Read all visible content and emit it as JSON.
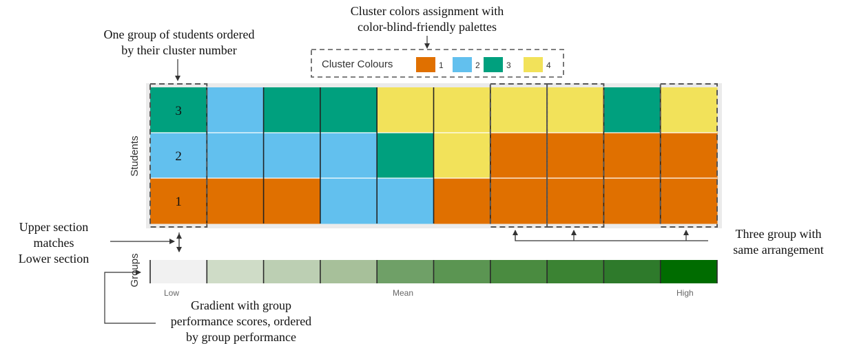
{
  "colors": {
    "cluster_1": "#E07000",
    "cluster_2": "#62C0EE",
    "cluster_3": "#00A07E",
    "cluster_4": "#F2E25A",
    "panel_bg": "#EBEBEB",
    "grid": "#FFFFFF",
    "column_divider": "#222222",
    "dashed_box": "#555555",
    "gradient": [
      "#F1F1F1",
      "#CFDCC7",
      "#BCCFB3",
      "#A7C09A",
      "#6FA067",
      "#5B9552",
      "#4A8B40",
      "#3B8333",
      "#2E7A2B",
      "#006C00"
    ]
  },
  "annotations": {
    "top_line1": "Cluster colors assignment with",
    "top_line2": "color-blind-friendly palettes",
    "left_top_line1": "One group of students ordered",
    "left_top_line2": "by their cluster number",
    "left_mid_line1": "Upper section",
    "left_mid_line2": "matches",
    "left_mid_line3": "Lower section",
    "right_line1": "Three group with",
    "right_line2": "same arrangement",
    "bottom_line1": "Gradient with group",
    "bottom_line2": "performance scores, ordered",
    "bottom_line3": "by group performance"
  },
  "legend": {
    "title": "Cluster Colours",
    "items": [
      {
        "label": "1",
        "color_key": "cluster_1"
      },
      {
        "label": "2",
        "color_key": "cluster_2"
      },
      {
        "label": "3",
        "color_key": "cluster_3"
      },
      {
        "label": "4",
        "color_key": "cluster_4"
      }
    ]
  },
  "heatmap": {
    "y_axis_label": "Students",
    "row_labels": [
      "3",
      "2",
      "1"
    ],
    "columns": [
      [
        3,
        2,
        1
      ],
      [
        2,
        2,
        1
      ],
      [
        3,
        2,
        1
      ],
      [
        3,
        2,
        2
      ],
      [
        4,
        3,
        2
      ],
      [
        4,
        4,
        1
      ],
      [
        4,
        1,
        1
      ],
      [
        4,
        1,
        1
      ],
      [
        3,
        1,
        1
      ],
      [
        4,
        1,
        1
      ]
    ]
  },
  "groups_bar": {
    "y_axis_label": "Groups",
    "tick_low": "Low",
    "tick_mean": "Mean",
    "tick_high": "High"
  }
}
